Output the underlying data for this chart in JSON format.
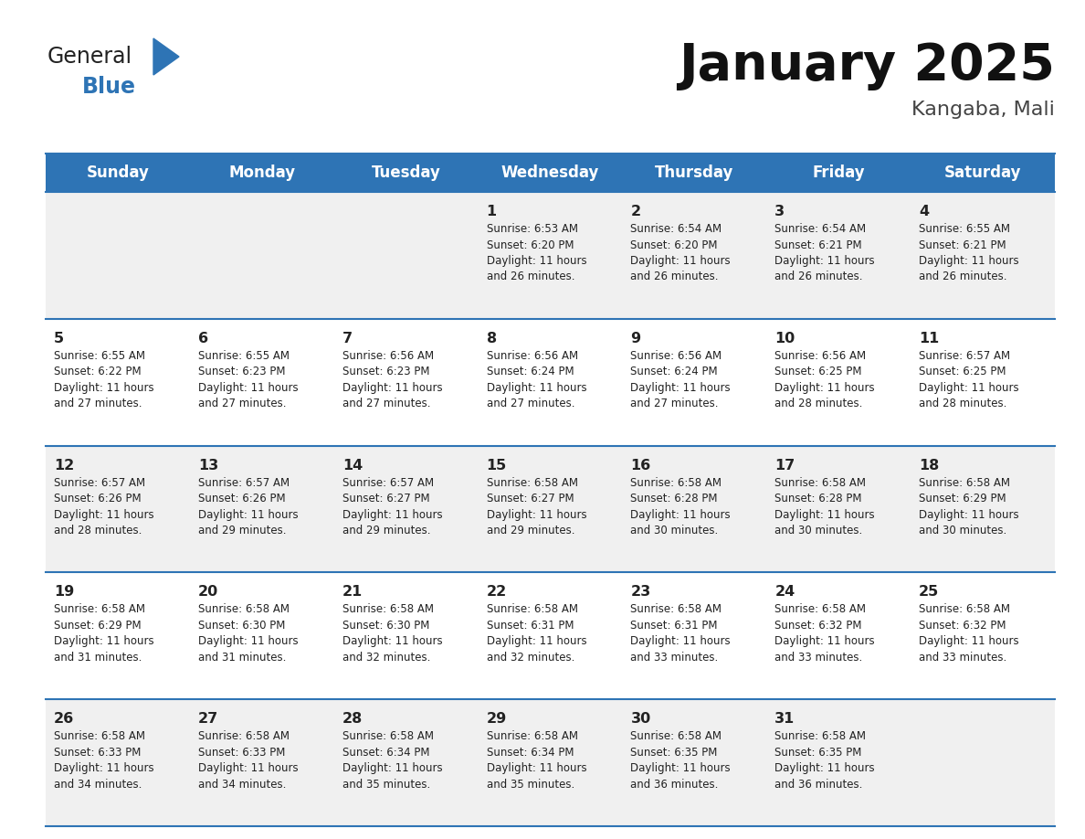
{
  "title": "January 2025",
  "subtitle": "Kangaba, Mali",
  "days_of_week": [
    "Sunday",
    "Monday",
    "Tuesday",
    "Wednesday",
    "Thursday",
    "Friday",
    "Saturday"
  ],
  "header_bg": "#2E74B5",
  "header_text": "#FFFFFF",
  "row_bg_odd": "#F0F0F0",
  "row_bg_even": "#FFFFFF",
  "cell_border": "#2E74B5",
  "day_num_color": "#222222",
  "text_color": "#222222",
  "title_color": "#111111",
  "subtitle_color": "#444444",
  "logo_general_color": "#222222",
  "logo_blue_color": "#2E74B5",
  "calendar_data": [
    [
      {
        "day": null,
        "text": ""
      },
      {
        "day": null,
        "text": ""
      },
      {
        "day": null,
        "text": ""
      },
      {
        "day": 1,
        "text": "Sunrise: 6:53 AM\nSunset: 6:20 PM\nDaylight: 11 hours\nand 26 minutes."
      },
      {
        "day": 2,
        "text": "Sunrise: 6:54 AM\nSunset: 6:20 PM\nDaylight: 11 hours\nand 26 minutes."
      },
      {
        "day": 3,
        "text": "Sunrise: 6:54 AM\nSunset: 6:21 PM\nDaylight: 11 hours\nand 26 minutes."
      },
      {
        "day": 4,
        "text": "Sunrise: 6:55 AM\nSunset: 6:21 PM\nDaylight: 11 hours\nand 26 minutes."
      }
    ],
    [
      {
        "day": 5,
        "text": "Sunrise: 6:55 AM\nSunset: 6:22 PM\nDaylight: 11 hours\nand 27 minutes."
      },
      {
        "day": 6,
        "text": "Sunrise: 6:55 AM\nSunset: 6:23 PM\nDaylight: 11 hours\nand 27 minutes."
      },
      {
        "day": 7,
        "text": "Sunrise: 6:56 AM\nSunset: 6:23 PM\nDaylight: 11 hours\nand 27 minutes."
      },
      {
        "day": 8,
        "text": "Sunrise: 6:56 AM\nSunset: 6:24 PM\nDaylight: 11 hours\nand 27 minutes."
      },
      {
        "day": 9,
        "text": "Sunrise: 6:56 AM\nSunset: 6:24 PM\nDaylight: 11 hours\nand 27 minutes."
      },
      {
        "day": 10,
        "text": "Sunrise: 6:56 AM\nSunset: 6:25 PM\nDaylight: 11 hours\nand 28 minutes."
      },
      {
        "day": 11,
        "text": "Sunrise: 6:57 AM\nSunset: 6:25 PM\nDaylight: 11 hours\nand 28 minutes."
      }
    ],
    [
      {
        "day": 12,
        "text": "Sunrise: 6:57 AM\nSunset: 6:26 PM\nDaylight: 11 hours\nand 28 minutes."
      },
      {
        "day": 13,
        "text": "Sunrise: 6:57 AM\nSunset: 6:26 PM\nDaylight: 11 hours\nand 29 minutes."
      },
      {
        "day": 14,
        "text": "Sunrise: 6:57 AM\nSunset: 6:27 PM\nDaylight: 11 hours\nand 29 minutes."
      },
      {
        "day": 15,
        "text": "Sunrise: 6:58 AM\nSunset: 6:27 PM\nDaylight: 11 hours\nand 29 minutes."
      },
      {
        "day": 16,
        "text": "Sunrise: 6:58 AM\nSunset: 6:28 PM\nDaylight: 11 hours\nand 30 minutes."
      },
      {
        "day": 17,
        "text": "Sunrise: 6:58 AM\nSunset: 6:28 PM\nDaylight: 11 hours\nand 30 minutes."
      },
      {
        "day": 18,
        "text": "Sunrise: 6:58 AM\nSunset: 6:29 PM\nDaylight: 11 hours\nand 30 minutes."
      }
    ],
    [
      {
        "day": 19,
        "text": "Sunrise: 6:58 AM\nSunset: 6:29 PM\nDaylight: 11 hours\nand 31 minutes."
      },
      {
        "day": 20,
        "text": "Sunrise: 6:58 AM\nSunset: 6:30 PM\nDaylight: 11 hours\nand 31 minutes."
      },
      {
        "day": 21,
        "text": "Sunrise: 6:58 AM\nSunset: 6:30 PM\nDaylight: 11 hours\nand 32 minutes."
      },
      {
        "day": 22,
        "text": "Sunrise: 6:58 AM\nSunset: 6:31 PM\nDaylight: 11 hours\nand 32 minutes."
      },
      {
        "day": 23,
        "text": "Sunrise: 6:58 AM\nSunset: 6:31 PM\nDaylight: 11 hours\nand 33 minutes."
      },
      {
        "day": 24,
        "text": "Sunrise: 6:58 AM\nSunset: 6:32 PM\nDaylight: 11 hours\nand 33 minutes."
      },
      {
        "day": 25,
        "text": "Sunrise: 6:58 AM\nSunset: 6:32 PM\nDaylight: 11 hours\nand 33 minutes."
      }
    ],
    [
      {
        "day": 26,
        "text": "Sunrise: 6:58 AM\nSunset: 6:33 PM\nDaylight: 11 hours\nand 34 minutes."
      },
      {
        "day": 27,
        "text": "Sunrise: 6:58 AM\nSunset: 6:33 PM\nDaylight: 11 hours\nand 34 minutes."
      },
      {
        "day": 28,
        "text": "Sunrise: 6:58 AM\nSunset: 6:34 PM\nDaylight: 11 hours\nand 35 minutes."
      },
      {
        "day": 29,
        "text": "Sunrise: 6:58 AM\nSunset: 6:34 PM\nDaylight: 11 hours\nand 35 minutes."
      },
      {
        "day": 30,
        "text": "Sunrise: 6:58 AM\nSunset: 6:35 PM\nDaylight: 11 hours\nand 36 minutes."
      },
      {
        "day": 31,
        "text": "Sunrise: 6:58 AM\nSunset: 6:35 PM\nDaylight: 11 hours\nand 36 minutes."
      },
      {
        "day": null,
        "text": ""
      }
    ]
  ]
}
